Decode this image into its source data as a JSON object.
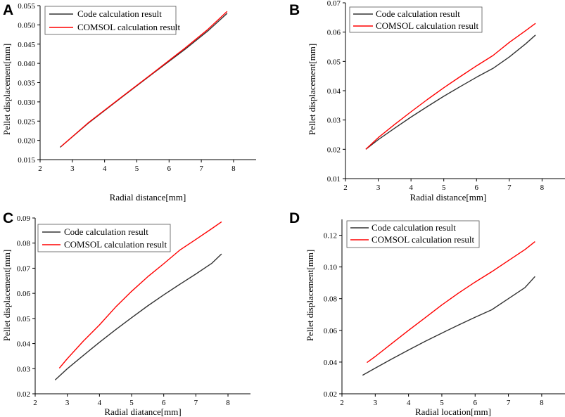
{
  "colors": {
    "code": "#333333",
    "comsol": "#ff0000"
  },
  "chart_data": [
    {
      "panel": "A",
      "type": "line",
      "xlabel": "Radial distance[mm]",
      "ylabel": "Pellet displacement[mm]",
      "xlim": [
        2,
        8.7
      ],
      "ylim": [
        0.015,
        0.055
      ],
      "xticks": [
        2,
        3,
        4,
        5,
        6,
        7,
        8
      ],
      "yticks": [
        0.015,
        0.02,
        0.025,
        0.03,
        0.035,
        0.04,
        0.045,
        0.05,
        0.055
      ],
      "ytick_labels": [
        "0.015",
        "0.020",
        "0.025",
        "0.030",
        "0.035",
        "0.040",
        "0.045",
        "0.050",
        "0.055"
      ],
      "legend": [
        "Code calculation result",
        "COMSOL calculation result"
      ],
      "legend_position": "top-left",
      "series": [
        {
          "name": "Code calculation result",
          "color_key": "code",
          "x": [
            2.62,
            3.5,
            4.5,
            5.5,
            6.5,
            7.2,
            7.8
          ],
          "y": [
            0.0182,
            0.0245,
            0.031,
            0.0374,
            0.0437,
            0.0484,
            0.053
          ]
        },
        {
          "name": "COMSOL calculation result",
          "color_key": "comsol",
          "x": [
            2.65,
            3.5,
            4.5,
            5.5,
            6.5,
            7.2,
            7.8
          ],
          "y": [
            0.0184,
            0.0246,
            0.0311,
            0.0375,
            0.044,
            0.0488,
            0.0535
          ]
        }
      ]
    },
    {
      "panel": "B",
      "type": "line",
      "xlabel": "Radial distance[mm]",
      "ylabel": "Pellet displacement[mm]",
      "xlim": [
        2,
        8.7
      ],
      "ylim": [
        0.01,
        0.07
      ],
      "xticks": [
        2,
        3,
        4,
        5,
        6,
        7,
        8
      ],
      "yticks": [
        0.01,
        0.02,
        0.03,
        0.04,
        0.05,
        0.06,
        0.07
      ],
      "ytick_labels": [
        "0.01",
        "0.02",
        "0.03",
        "0.04",
        "0.05",
        "0.06",
        "0.07"
      ],
      "legend": [
        "Code calculation result",
        "COMSOL calculation result"
      ],
      "legend_position": "top-right",
      "series": [
        {
          "name": "Code calculation result",
          "color_key": "code",
          "x": [
            2.62,
            3.0,
            3.5,
            4.0,
            4.5,
            5.0,
            5.5,
            6.0,
            6.5,
            7.0,
            7.5,
            7.8
          ],
          "y": [
            0.02,
            0.0233,
            0.0272,
            0.031,
            0.0346,
            0.0381,
            0.0414,
            0.0446,
            0.0476,
            0.0515,
            0.056,
            0.059
          ]
        },
        {
          "name": "COMSOL calculation result",
          "color_key": "comsol",
          "x": [
            2.62,
            3.0,
            3.5,
            4.0,
            4.5,
            5.0,
            5.5,
            6.0,
            6.5,
            7.0,
            7.5,
            7.8
          ],
          "y": [
            0.02,
            0.024,
            0.0285,
            0.0328,
            0.037,
            0.041,
            0.0448,
            0.0485,
            0.052,
            0.0565,
            0.0605,
            0.063
          ]
        }
      ]
    },
    {
      "panel": "C",
      "type": "line",
      "xlabel": "Radial diatance[mm]",
      "ylabel": "Pellet displacement[mm]",
      "xlim": [
        2,
        8.7
      ],
      "ylim": [
        0.02,
        0.09
      ],
      "xticks": [
        2,
        3,
        4,
        5,
        6,
        7,
        8
      ],
      "yticks": [
        0.02,
        0.03,
        0.04,
        0.05,
        0.06,
        0.07,
        0.08,
        0.09
      ],
      "ytick_labels": [
        "0.02",
        "0.03",
        "0.04",
        "0.05",
        "0.06",
        "0.07",
        "0.08",
        "0.09"
      ],
      "legend": [
        "Code calculation result",
        "COMSOL calculation result"
      ],
      "legend_position": "top-left",
      "series": [
        {
          "name": "Code calculation result",
          "color_key": "code",
          "x": [
            2.62,
            3.0,
            3.5,
            4.0,
            4.5,
            5.0,
            5.5,
            6.0,
            6.5,
            7.0,
            7.5,
            7.8
          ],
          "y": [
            0.0255,
            0.03,
            0.0353,
            0.0405,
            0.0455,
            0.0503,
            0.055,
            0.0594,
            0.0636,
            0.0677,
            0.072,
            0.0757
          ]
        },
        {
          "name": "COMSOL calculation result",
          "color_key": "comsol",
          "x": [
            2.75,
            3.0,
            3.5,
            4.0,
            4.5,
            5.0,
            5.5,
            6.0,
            6.5,
            7.0,
            7.5,
            7.8
          ],
          "y": [
            0.0302,
            0.034,
            0.041,
            0.0474,
            0.0545,
            0.0608,
            0.0666,
            0.0718,
            0.0772,
            0.0815,
            0.0858,
            0.0885
          ]
        }
      ]
    },
    {
      "panel": "D",
      "type": "line",
      "xlabel": "Radial location[mm]",
      "ylabel": "Pellet displacement[mm]",
      "xlim": [
        2,
        8.7
      ],
      "ylim": [
        0.02,
        0.13
      ],
      "xticks": [
        2,
        3,
        4,
        5,
        6,
        7,
        8
      ],
      "yticks": [
        0.02,
        0.04,
        0.06,
        0.08,
        0.1,
        0.12
      ],
      "ytick_labels": [
        "0.02",
        "0.04",
        "0.06",
        "0.08",
        "0.10",
        "0.12"
      ],
      "legend": [
        "Code calculation result",
        "COMSOL calculation result"
      ],
      "legend_position": "top-right",
      "series": [
        {
          "name": "Code calculation result",
          "color_key": "code",
          "x": [
            2.62,
            3.0,
            3.5,
            4.0,
            4.5,
            5.0,
            5.5,
            6.0,
            6.5,
            7.0,
            7.5,
            7.8
          ],
          "y": [
            0.0317,
            0.0362,
            0.042,
            0.0476,
            0.0531,
            0.0583,
            0.0634,
            0.0683,
            0.073,
            0.08,
            0.087,
            0.094
          ]
        },
        {
          "name": "COMSOL calculation result",
          "color_key": "comsol",
          "x": [
            2.75,
            3.0,
            3.5,
            4.0,
            4.5,
            5.0,
            5.5,
            6.0,
            6.5,
            7.0,
            7.5,
            7.8
          ],
          "y": [
            0.0397,
            0.0435,
            0.0518,
            0.06,
            0.068,
            0.076,
            0.0835,
            0.0905,
            0.097,
            0.104,
            0.111,
            0.116
          ]
        }
      ]
    }
  ]
}
